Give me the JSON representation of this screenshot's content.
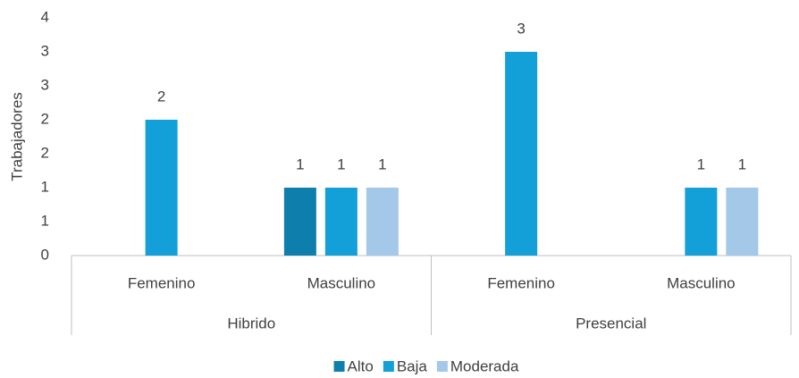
{
  "chart_data": {
    "type": "bar",
    "y_label": "Trabajadores",
    "groups": [
      "Hibrido",
      "Presencial"
    ],
    "categories": [
      "Femenino",
      "Masculino",
      "Femenino",
      "Masculino"
    ],
    "series": [
      {
        "name": "Alto",
        "color": "#0e7fad",
        "values": [
          null,
          1,
          null,
          null
        ]
      },
      {
        "name": "Baja",
        "color": "#139fd8",
        "values": [
          2,
          1,
          3,
          1
        ]
      },
      {
        "name": "Moderada",
        "color": "#a3c8e8",
        "values": [
          null,
          1,
          null,
          1
        ]
      }
    ],
    "ylim": [
      0,
      3.5
    ],
    "yticks": [
      0,
      {
        "value": 0.5,
        "label": "1"
      },
      1,
      {
        "value": 1.5,
        "label": "2"
      },
      2,
      {
        "value": 2.5,
        "label": "3"
      },
      3,
      {
        "value": 3.5,
        "label": "4"
      }
    ],
    "grid": false,
    "data_labels": true,
    "legend": "bottom"
  }
}
